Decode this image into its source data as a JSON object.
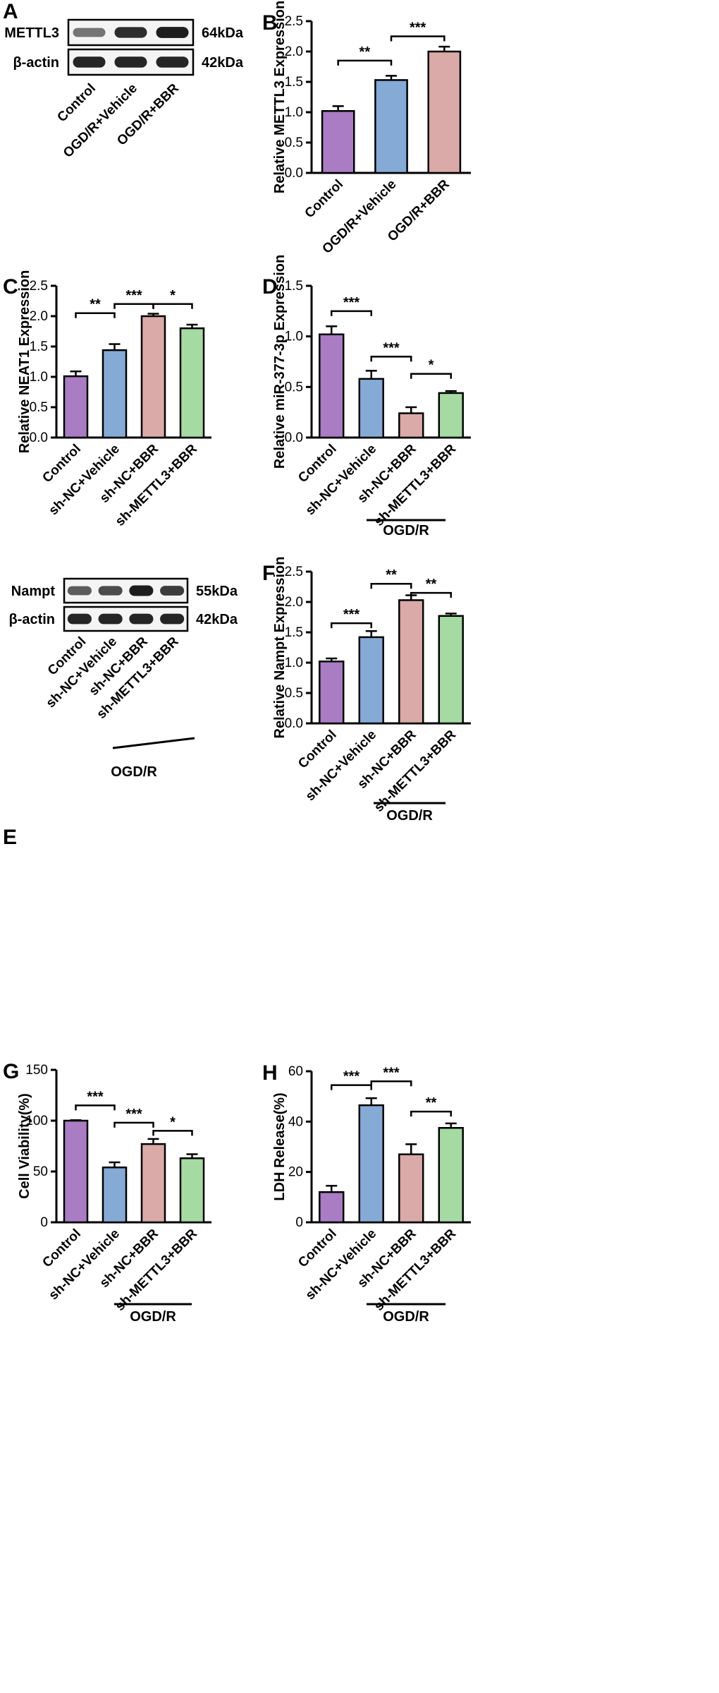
{
  "colors": {
    "control": "#a97cc4",
    "vehicle": "#85aad6",
    "bbr": "#d9aaa8",
    "mettl3": "#a5dba3"
  },
  "blot_A": {
    "panel_label": "A",
    "rows": [
      {
        "label": "METTL3",
        "kda": "64kDa",
        "intensities": [
          0.45,
          0.9,
          1.0
        ]
      },
      {
        "label": "β-actin",
        "kda": "42kDa",
        "intensities": [
          0.95,
          0.95,
          0.95
        ]
      }
    ],
    "lanes": [
      "Control",
      "OGD/R+Vehicle",
      "OGD/R+BBR"
    ]
  },
  "blot_E": {
    "panel_label": "E",
    "rows": [
      {
        "label": "Nampt",
        "kda": "55kDa",
        "intensities": [
          0.6,
          0.7,
          1.0,
          0.8
        ]
      },
      {
        "label": "β-actin",
        "kda": "42kDa",
        "intensities": [
          0.95,
          0.95,
          0.95,
          0.95
        ]
      }
    ],
    "lanes": [
      "Control",
      "sh-NC+Vehicle",
      "sh-NC+BBR",
      "sh-METTL3+BBR"
    ],
    "group_label": "OGD/R"
  },
  "chart_data": [
    {
      "id": "B",
      "panel_label": "B",
      "type": "bar",
      "ylabel": "Relative METTL3 Expression",
      "ylim": [
        0,
        2.5
      ],
      "yticks": [
        "0.0",
        "0.5",
        "1.0",
        "1.5",
        "2.0",
        "2.5"
      ],
      "categories": [
        "Control",
        "OGD/R+Vehicle",
        "OGD/R+BBR"
      ],
      "values": [
        1.02,
        1.53,
        2.0
      ],
      "errors": [
        0.08,
        0.07,
        0.08
      ],
      "color_keys": [
        "control",
        "vehicle",
        "bbr"
      ],
      "significance": [
        {
          "from": 0,
          "to": 1,
          "y": 1.85,
          "label": "**"
        },
        {
          "from": 1,
          "to": 2,
          "y": 2.25,
          "label": "***"
        }
      ],
      "group_label": ""
    },
    {
      "id": "C",
      "panel_label": "C",
      "type": "bar",
      "ylabel": "Relative NEAT1 Expression",
      "ylim": [
        0,
        2.5
      ],
      "yticks": [
        "0.0",
        "0.5",
        "1.0",
        "1.5",
        "2.0",
        "2.5"
      ],
      "categories": [
        "Control",
        "sh-NC+Vehicle",
        "sh-NC+BBR",
        "sh-METTL3+BBR"
      ],
      "values": [
        1.01,
        1.44,
        2.0,
        1.8
      ],
      "errors": [
        0.08,
        0.1,
        0.04,
        0.06
      ],
      "color_keys": [
        "control",
        "vehicle",
        "bbr",
        "mettl3"
      ],
      "significance": [
        {
          "from": 0,
          "to": 1,
          "y": 2.05,
          "label": "**"
        },
        {
          "from": 1,
          "to": 2,
          "y": 2.2,
          "label": "***"
        },
        {
          "from": 2,
          "to": 3,
          "y": 2.2,
          "label": "*"
        }
      ],
      "group_label": ""
    },
    {
      "id": "D",
      "panel_label": "D",
      "type": "bar",
      "ylabel": "Relative miR-377-3p Expression",
      "ylim": [
        0,
        1.5
      ],
      "yticks": [
        "0.0",
        "0.5",
        "1.0",
        "1.5"
      ],
      "categories": [
        "Control",
        "sh-NC+Vehicle",
        "sh-NC+BBR",
        "sh-METTL3+BBR"
      ],
      "values": [
        1.02,
        0.58,
        0.24,
        0.44
      ],
      "errors": [
        0.08,
        0.08,
        0.06,
        0.02
      ],
      "color_keys": [
        "control",
        "vehicle",
        "bbr",
        "mettl3"
      ],
      "significance": [
        {
          "from": 0,
          "to": 1,
          "y": 1.25,
          "label": "***"
        },
        {
          "from": 1,
          "to": 2,
          "y": 0.8,
          "label": "***"
        },
        {
          "from": 2,
          "to": 3,
          "y": 0.63,
          "label": "*"
        }
      ],
      "group_label": "OGD/R"
    },
    {
      "id": "F",
      "panel_label": "F",
      "type": "bar",
      "ylabel": "Relative Nampt Expression",
      "ylim": [
        0,
        2.5
      ],
      "yticks": [
        "0.0",
        "0.5",
        "1.0",
        "1.5",
        "2.0",
        "2.5"
      ],
      "categories": [
        "Control",
        "sh-NC+Vehicle",
        "sh-NC+BBR",
        "sh-METTL3+BBR"
      ],
      "values": [
        1.02,
        1.42,
        2.03,
        1.77
      ],
      "errors": [
        0.05,
        0.1,
        0.08,
        0.04
      ],
      "color_keys": [
        "control",
        "vehicle",
        "bbr",
        "mettl3"
      ],
      "significance": [
        {
          "from": 0,
          "to": 1,
          "y": 1.65,
          "label": "***"
        },
        {
          "from": 1,
          "to": 2,
          "y": 2.3,
          "label": "**"
        },
        {
          "from": 2,
          "to": 3,
          "y": 2.15,
          "label": "**"
        }
      ],
      "group_label": "OGD/R"
    },
    {
      "id": "G",
      "panel_label": "G",
      "type": "bar",
      "ylabel": "Cell Viability(%)",
      "ylim": [
        0,
        150
      ],
      "yticks": [
        "0",
        "50",
        "100",
        "150"
      ],
      "categories": [
        "Control",
        "sh-NC+Vehicle",
        "sh-NC+BBR",
        "sh-METTL3+BBR"
      ],
      "values": [
        100,
        54,
        77,
        63
      ],
      "errors": [
        0.5,
        5,
        5,
        4
      ],
      "color_keys": [
        "control",
        "vehicle",
        "bbr",
        "mettl3"
      ],
      "significance": [
        {
          "from": 0,
          "to": 1,
          "y": 115,
          "label": "***"
        },
        {
          "from": 1,
          "to": 2,
          "y": 98,
          "label": "***"
        },
        {
          "from": 2,
          "to": 3,
          "y": 90,
          "label": "*"
        }
      ],
      "group_label": "OGD/R"
    },
    {
      "id": "H",
      "panel_label": "H",
      "type": "bar",
      "ylabel": "LDH Release(%)",
      "ylim": [
        0,
        60
      ],
      "yticks": [
        "0",
        "20",
        "40",
        "60"
      ],
      "categories": [
        "Control",
        "sh-NC+Vehicle",
        "sh-NC+BBR",
        "sh-METTL3+BBR"
      ],
      "values": [
        12,
        46.5,
        27,
        37.5
      ],
      "errors": [
        2.5,
        2.8,
        4,
        1.8
      ],
      "color_keys": [
        "control",
        "vehicle",
        "bbr",
        "mettl3"
      ],
      "significance": [
        {
          "from": 0,
          "to": 1,
          "y": 54.5,
          "label": "***"
        },
        {
          "from": 1,
          "to": 2,
          "y": 56,
          "label": "***"
        },
        {
          "from": 2,
          "to": 3,
          "y": 44,
          "label": "**"
        }
      ],
      "group_label": "OGD/R"
    }
  ]
}
